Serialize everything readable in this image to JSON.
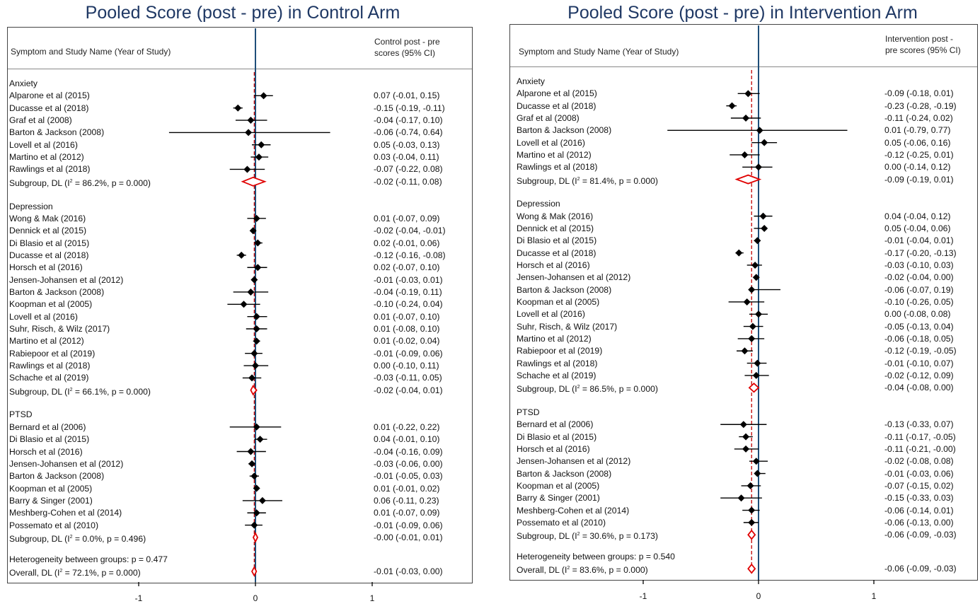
{
  "chart_data": [
    {
      "type": "forest",
      "title": "Pooled Score (post - pre) in Control Arm",
      "col_left_header": "Symptom and Study Name (Year of Study)",
      "col_right_header": "Control post - pre\nscores (95% CI)",
      "xlim": [
        -1.55,
        1.75
      ],
      "xticks": [
        -1,
        0,
        1
      ],
      "groups": [
        {
          "name": "Anxiety",
          "studies": [
            {
              "label": "Alparone et al  (2015)",
              "est": 0.07,
              "lo": -0.01,
              "hi": 0.15,
              "ci_text": "0.07 (-0.01, 0.15)"
            },
            {
              "label": "Ducasse et al  (2018)",
              "est": -0.15,
              "lo": -0.19,
              "hi": -0.11,
              "ci_text": "-0.15 (-0.19, -0.11)"
            },
            {
              "label": "Graf et al (2008)",
              "est": -0.04,
              "lo": -0.17,
              "hi": 0.1,
              "ci_text": "-0.04 (-0.17, 0.10)"
            },
            {
              "label": "Barton & Jackson (2008)",
              "est": -0.06,
              "lo": -0.74,
              "hi": 0.64,
              "ci_text": "-0.06 (-0.74, 0.64)"
            },
            {
              "label": "Lovell et al  (2016)",
              "est": 0.05,
              "lo": -0.03,
              "hi": 0.13,
              "ci_text": "0.05 (-0.03, 0.13)"
            },
            {
              "label": "Martino et al  (2012)",
              "est": 0.03,
              "lo": -0.04,
              "hi": 0.11,
              "ci_text": "0.03 (-0.04, 0.11)"
            },
            {
              "label": "Rawlings et al (2018)",
              "est": -0.07,
              "lo": -0.22,
              "hi": 0.08,
              "ci_text": "-0.07 (-0.22, 0.08)"
            }
          ],
          "subgroup": {
            "label_pre": "Subgroup, DL (I",
            "label_post": " = 86.2%, p = 0.000)",
            "est": -0.02,
            "lo": -0.11,
            "hi": 0.08,
            "ci_text": "-0.02 (-0.11, 0.08)"
          }
        },
        {
          "name": "Depression",
          "studies": [
            {
              "label": "Wong & Mak  (2016)",
              "est": 0.01,
              "lo": -0.07,
              "hi": 0.09,
              "ci_text": "0.01 (-0.07, 0.09)"
            },
            {
              "label": "Dennick et al  (2015)",
              "est": -0.02,
              "lo": -0.04,
              "hi": -0.01,
              "ci_text": "-0.02 (-0.04, -0.01)"
            },
            {
              "label": "Di Blasio et al  (2015)",
              "est": 0.02,
              "lo": -0.01,
              "hi": 0.06,
              "ci_text": "0.02 (-0.01, 0.06)"
            },
            {
              "label": "Ducasse et al  (2018)",
              "est": -0.12,
              "lo": -0.16,
              "hi": -0.08,
              "ci_text": "-0.12 (-0.16, -0.08)"
            },
            {
              "label": "Horsch et al  (2016)",
              "est": 0.02,
              "lo": -0.07,
              "hi": 0.1,
              "ci_text": "0.02 (-0.07, 0.10)"
            },
            {
              "label": "Jensen-Johansen et al  (2012)",
              "est": -0.01,
              "lo": -0.03,
              "hi": 0.01,
              "ci_text": "-0.01 (-0.03, 0.01)"
            },
            {
              "label": "Barton & Jackson (2008)",
              "est": -0.04,
              "lo": -0.19,
              "hi": 0.11,
              "ci_text": "-0.04 (-0.19, 0.11)"
            },
            {
              "label": "Koopman et al  (2005)",
              "est": -0.1,
              "lo": -0.24,
              "hi": 0.04,
              "ci_text": "-0.10 (-0.24, 0.04)"
            },
            {
              "label": "Lovell et al  (2016)",
              "est": 0.01,
              "lo": -0.07,
              "hi": 0.1,
              "ci_text": "0.01 (-0.07, 0.10)"
            },
            {
              "label": "Suhr, Risch, & Wilz (2017)",
              "est": 0.01,
              "lo": -0.08,
              "hi": 0.1,
              "ci_text": "0.01 (-0.08, 0.10)"
            },
            {
              "label": "Martino et al  (2012)",
              "est": 0.01,
              "lo": -0.02,
              "hi": 0.04,
              "ci_text": "0.01 (-0.02, 0.04)"
            },
            {
              "label": "Rabiepoor et al  (2019)",
              "est": -0.01,
              "lo": -0.09,
              "hi": 0.06,
              "ci_text": "-0.01 (-0.09, 0.06)"
            },
            {
              "label": "Rawlings et al (2018)",
              "est": 0.0,
              "lo": -0.1,
              "hi": 0.11,
              "ci_text": "0.00 (-0.10, 0.11)"
            },
            {
              "label": "Schache et al  (2019)",
              "est": -0.03,
              "lo": -0.11,
              "hi": 0.05,
              "ci_text": "-0.03 (-0.11, 0.05)"
            }
          ],
          "subgroup": {
            "label_pre": "Subgroup, DL (I",
            "label_post": " = 66.1%, p = 0.000)",
            "est": -0.02,
            "lo": -0.04,
            "hi": 0.01,
            "ci_text": "-0.02 (-0.04, 0.01)"
          }
        },
        {
          "name": "PTSD",
          "studies": [
            {
              "label": "Bernard et al (2006)",
              "est": 0.01,
              "lo": -0.22,
              "hi": 0.22,
              "ci_text": "0.01 (-0.22, 0.22)"
            },
            {
              "label": "Di Blasio et al  (2015)",
              "est": 0.04,
              "lo": -0.01,
              "hi": 0.1,
              "ci_text": "0.04 (-0.01, 0.10)"
            },
            {
              "label": "Horsch et al  (2016)",
              "est": -0.04,
              "lo": -0.16,
              "hi": 0.09,
              "ci_text": "-0.04 (-0.16, 0.09)"
            },
            {
              "label": "Jensen-Johansen et al  (2012)",
              "est": -0.03,
              "lo": -0.06,
              "hi": 0.0,
              "ci_text": "-0.03 (-0.06, 0.00)"
            },
            {
              "label": "Barton & Jackson (2008)",
              "est": -0.01,
              "lo": -0.05,
              "hi": 0.03,
              "ci_text": "-0.01 (-0.05, 0.03)"
            },
            {
              "label": "Koopman et al  (2005)",
              "est": 0.01,
              "lo": -0.01,
              "hi": 0.02,
              "ci_text": "0.01 (-0.01, 0.02)"
            },
            {
              "label": "Barry & Singer  (2001)",
              "est": 0.06,
              "lo": -0.11,
              "hi": 0.23,
              "ci_text": "0.06 (-0.11, 0.23)"
            },
            {
              "label": "Meshberg-Cohen et al  (2014)",
              "est": 0.01,
              "lo": -0.07,
              "hi": 0.09,
              "ci_text": "0.01 (-0.07, 0.09)"
            },
            {
              "label": "Possemato et al  (2010)",
              "est": -0.01,
              "lo": -0.09,
              "hi": 0.06,
              "ci_text": "-0.01 (-0.09, 0.06)"
            }
          ],
          "subgroup": {
            "label_pre": "Subgroup, DL (I",
            "label_post": " = 0.0%, p = 0.496)",
            "est": -0.0,
            "lo": -0.01,
            "hi": 0.01,
            "ci_text": "-0.00 (-0.01, 0.01)"
          }
        }
      ],
      "heterogeneity": "Heterogeneity between groups: p = 0.477",
      "overall": {
        "label_pre": "Overall, DL (I",
        "label_post": " = 72.1%, p = 0.000)",
        "est": -0.01,
        "lo": -0.03,
        "hi": 0.0,
        "ci_text": "-0.01 (-0.03, 0.00)"
      }
    },
    {
      "type": "forest",
      "title": "Pooled Score (post - pre) in Intervention Arm",
      "col_left_header": "Symptom and Study Name (Year of Study)",
      "col_right_header": "Intervention post -\npre scores (95% CI)",
      "xlim": [
        -2.2,
        1.8
      ],
      "xticks": [
        -1,
        0,
        1
      ],
      "groups": [
        {
          "name": "Anxiety",
          "studies": [
            {
              "label": "Alparone et al  (2015)",
              "est": -0.09,
              "lo": -0.18,
              "hi": 0.01,
              "ci_text": "-0.09 (-0.18, 0.01)"
            },
            {
              "label": "Ducasse et al  (2018)",
              "est": -0.23,
              "lo": -0.28,
              "hi": -0.19,
              "ci_text": "-0.23 (-0.28, -0.19)"
            },
            {
              "label": "Graf et al (2008)",
              "est": -0.11,
              "lo": -0.24,
              "hi": 0.02,
              "ci_text": "-0.11 (-0.24, 0.02)"
            },
            {
              "label": "Barton & Jackson (2008)",
              "est": 0.01,
              "lo": -0.79,
              "hi": 0.77,
              "ci_text": "0.01 (-0.79, 0.77)"
            },
            {
              "label": "Lovell et al  (2016)",
              "est": 0.05,
              "lo": -0.06,
              "hi": 0.16,
              "ci_text": "0.05 (-0.06, 0.16)"
            },
            {
              "label": "Martino et al  (2012)",
              "est": -0.12,
              "lo": -0.25,
              "hi": 0.01,
              "ci_text": "-0.12 (-0.25, 0.01)"
            },
            {
              "label": "Rawlings et al (2018)",
              "est": 0.0,
              "lo": -0.14,
              "hi": 0.12,
              "ci_text": "0.00 (-0.14, 0.12)"
            }
          ],
          "subgroup": {
            "label_pre": "Subgroup, DL (I",
            "label_post": " = 81.4%, p = 0.000)",
            "est": -0.09,
            "lo": -0.19,
            "hi": 0.01,
            "ci_text": "-0.09 (-0.19, 0.01)"
          }
        },
        {
          "name": "Depression",
          "studies": [
            {
              "label": "Wong & Mak  (2016)",
              "est": 0.04,
              "lo": -0.04,
              "hi": 0.12,
              "ci_text": "0.04 (-0.04, 0.12)"
            },
            {
              "label": "Dennick et al  (2015)",
              "est": 0.05,
              "lo": -0.04,
              "hi": 0.06,
              "ci_text": "0.05 (-0.04, 0.06)"
            },
            {
              "label": "Di Blasio et al  (2015)",
              "est": -0.01,
              "lo": -0.04,
              "hi": 0.01,
              "ci_text": "-0.01 (-0.04, 0.01)"
            },
            {
              "label": "Ducasse et al  (2018)",
              "est": -0.17,
              "lo": -0.2,
              "hi": -0.13,
              "ci_text": "-0.17 (-0.20, -0.13)"
            },
            {
              "label": "Horsch et al  (2016)",
              "est": -0.03,
              "lo": -0.1,
              "hi": 0.03,
              "ci_text": "-0.03 (-0.10, 0.03)"
            },
            {
              "label": "Jensen-Johansen et al  (2012)",
              "est": -0.02,
              "lo": -0.04,
              "hi": 0.0,
              "ci_text": "-0.02 (-0.04, 0.00)"
            },
            {
              "label": "Barton & Jackson (2008)",
              "est": -0.06,
              "lo": -0.07,
              "hi": 0.19,
              "ci_text": "-0.06 (-0.07, 0.19)"
            },
            {
              "label": "Koopman et al  (2005)",
              "est": -0.1,
              "lo": -0.26,
              "hi": 0.05,
              "ci_text": "-0.10 (-0.26, 0.05)"
            },
            {
              "label": "Lovell et al  (2016)",
              "est": 0.0,
              "lo": -0.08,
              "hi": 0.08,
              "ci_text": "0.00 (-0.08, 0.08)"
            },
            {
              "label": "Suhr, Risch, & Wilz (2017)",
              "est": -0.05,
              "lo": -0.13,
              "hi": 0.04,
              "ci_text": "-0.05 (-0.13, 0.04)"
            },
            {
              "label": "Martino et al  (2012)",
              "est": -0.06,
              "lo": -0.18,
              "hi": 0.05,
              "ci_text": "-0.06 (-0.18, 0.05)"
            },
            {
              "label": "Rabiepoor et al  (2019)",
              "est": -0.12,
              "lo": -0.19,
              "hi": -0.05,
              "ci_text": "-0.12 (-0.19, -0.05)"
            },
            {
              "label": "Rawlings et al (2018)",
              "est": -0.01,
              "lo": -0.1,
              "hi": 0.07,
              "ci_text": "-0.01 (-0.10, 0.07)"
            },
            {
              "label": "Schache et al  (2019)",
              "est": -0.02,
              "lo": -0.12,
              "hi": 0.09,
              "ci_text": "-0.02 (-0.12, 0.09)"
            }
          ],
          "subgroup": {
            "label_pre": "Subgroup, DL (I",
            "label_post": " = 86.5%, p = 0.000)",
            "est": -0.04,
            "lo": -0.08,
            "hi": 0.0,
            "ci_text": "-0.04 (-0.08, 0.00)"
          }
        },
        {
          "name": "PTSD",
          "studies": [
            {
              "label": "Bernard et al (2006)",
              "est": -0.13,
              "lo": -0.33,
              "hi": 0.07,
              "ci_text": "-0.13 (-0.33, 0.07)"
            },
            {
              "label": "Di Blasio et al  (2015)",
              "est": -0.11,
              "lo": -0.17,
              "hi": -0.05,
              "ci_text": "-0.11 (-0.17, -0.05)"
            },
            {
              "label": "Horsch et al  (2016)",
              "est": -0.11,
              "lo": -0.21,
              "hi": -0.0,
              "ci_text": "-0.11 (-0.21, -0.00)"
            },
            {
              "label": "Jensen-Johansen et al  (2012)",
              "est": -0.02,
              "lo": -0.08,
              "hi": 0.08,
              "ci_text": "-0.02 (-0.08, 0.08)"
            },
            {
              "label": "Barton & Jackson (2008)",
              "est": -0.01,
              "lo": -0.03,
              "hi": 0.06,
              "ci_text": "-0.01 (-0.03, 0.06)"
            },
            {
              "label": "Koopman et al  (2005)",
              "est": -0.07,
              "lo": -0.15,
              "hi": 0.02,
              "ci_text": "-0.07 (-0.15, 0.02)"
            },
            {
              "label": "Barry & Singer  (2001)",
              "est": -0.15,
              "lo": -0.33,
              "hi": 0.03,
              "ci_text": "-0.15 (-0.33, 0.03)"
            },
            {
              "label": "Meshberg-Cohen et al  (2014)",
              "est": -0.06,
              "lo": -0.14,
              "hi": 0.01,
              "ci_text": "-0.06 (-0.14, 0.01)"
            },
            {
              "label": "Possemato et al  (2010)",
              "est": -0.06,
              "lo": -0.13,
              "hi": 0.0,
              "ci_text": "-0.06 (-0.13, 0.00)"
            }
          ],
          "subgroup": {
            "label_pre": "Subgroup, DL (I",
            "label_post": " = 30.6%, p = 0.173)",
            "est": -0.06,
            "lo": -0.09,
            "hi": -0.03,
            "ci_text": "-0.06 (-0.09, -0.03)"
          }
        }
      ],
      "heterogeneity": "Heterogeneity between groups: p = 0.540",
      "overall": {
        "label_pre": "Overall, DL (I",
        "label_post": " = 83.6%, p = 0.000)",
        "est": -0.06,
        "lo": -0.09,
        "hi": -0.03,
        "ci_text": "-0.06 (-0.09, -0.03)"
      }
    }
  ],
  "style": {
    "zero_line_color": "#1f4e79",
    "pooled_line_color": "#c00000",
    "diamond_color": "#e00000",
    "point_color": "#000000"
  }
}
